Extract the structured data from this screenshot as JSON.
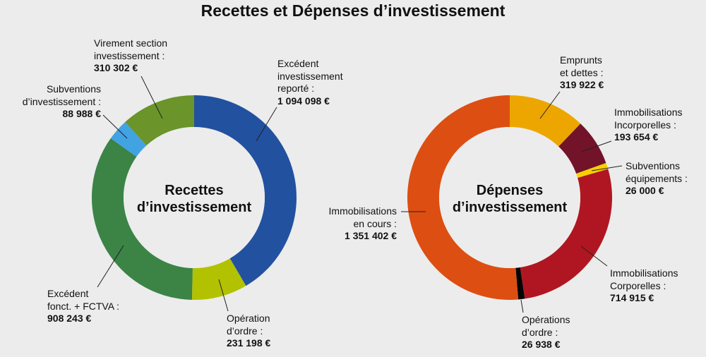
{
  "chart_data": [
    {
      "type": "pie",
      "variant": "donut",
      "title": "Recettes d’investissement",
      "slices": [
        {
          "label_lines": [
            "Excédent",
            "investissement",
            "reporté :"
          ],
          "value": 1094098,
          "value_label": "1 094 098 €",
          "color": "#2251a0"
        },
        {
          "label_lines": [
            "Opération",
            "d’ordre :"
          ],
          "value": 231198,
          "value_label": "231 198 €",
          "color": "#b2c200"
        },
        {
          "label_lines": [
            "Excédent",
            "fonct. + FCTVA :"
          ],
          "value": 908243,
          "value_label": "908 243 €",
          "color": "#3b8446"
        },
        {
          "label_lines": [
            "Subventions",
            "d’investissement :"
          ],
          "value": 88988,
          "value_label": "88 988 €",
          "color": "#42a3e3"
        },
        {
          "label_lines": [
            "Virement section",
            "investissement :"
          ],
          "value": 310302,
          "value_label": "310 302 €",
          "color": "#6b942a"
        }
      ]
    },
    {
      "type": "pie",
      "variant": "donut",
      "title": "Dépenses d’investissement",
      "slices": [
        {
          "label_lines": [
            "Emprunts",
            "et dettes :"
          ],
          "value": 319922,
          "value_label": "319 922 €",
          "color": "#eda600"
        },
        {
          "label_lines": [
            "Immobilisations",
            "Incorporelles :"
          ],
          "value": 193654,
          "value_label": "193 654 €",
          "color": "#72132a"
        },
        {
          "label_lines": [
            "Subventions",
            "équipements :"
          ],
          "value": 26000,
          "value_label": "26 000 €",
          "color": "#f7d000"
        },
        {
          "label_lines": [
            "Immobilisations",
            "Corporelles :"
          ],
          "value": 714915,
          "value_label": "714 915 €",
          "color": "#b01621"
        },
        {
          "label_lines": [
            "Opérations",
            "d’ordre :"
          ],
          "value": 26938,
          "value_label": "26 938 €",
          "color": "#050505"
        },
        {
          "label_lines": [
            "Immobilisations",
            "en cours :"
          ],
          "value": 1351402,
          "value_label": "1 351 402 €",
          "color": "#dd4e12"
        }
      ]
    }
  ],
  "title": "Recettes et Dépenses d’investissement",
  "center_labels": [
    [
      "Recettes",
      "d’investissement"
    ],
    [
      "Dépenses",
      "d’investissement"
    ]
  ]
}
